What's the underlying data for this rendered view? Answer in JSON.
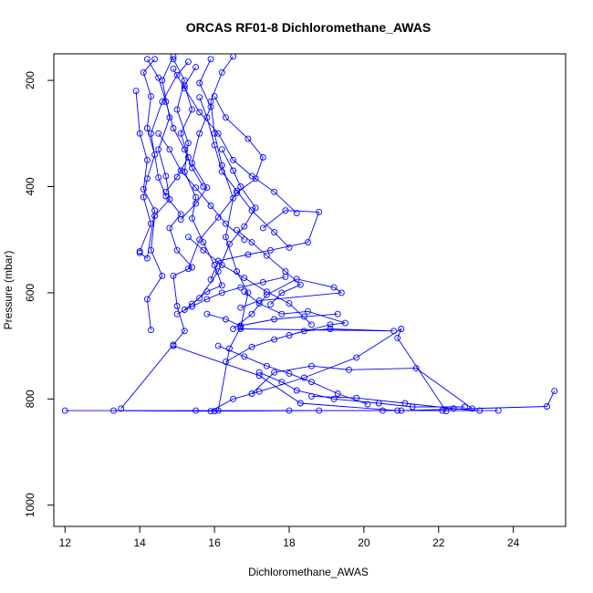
{
  "chart_data": {
    "type": "line",
    "title": "ORCAS RF01-8 Dichloromethane_AWAS",
    "xlabel": "Dichloromethane_AWAS",
    "ylabel": "Pressure (mbar)",
    "xlim": [
      11.7,
      25.4
    ],
    "ylim": [
      1040,
      150
    ],
    "y_reversed": true,
    "x_ticks": [
      12,
      14,
      16,
      18,
      20,
      22,
      24
    ],
    "y_ticks": [
      200,
      400,
      600,
      800,
      1000
    ],
    "grid": false,
    "legend": "none",
    "marker": "open-circle",
    "colors": {
      "series": "#0000ff",
      "axis": "#000000",
      "background": "#ffffff"
    },
    "series": [
      {
        "points": [
          [
            13.5,
            818
          ],
          [
            14.9,
            698
          ],
          [
            15.2,
            672
          ],
          [
            15.0,
            625
          ],
          [
            14.9,
            568
          ],
          [
            15.4,
            552
          ],
          [
            15.0,
            520
          ],
          [
            14.8,
            478
          ],
          [
            15.1,
            452
          ],
          [
            14.7,
            418
          ],
          [
            14.5,
            383
          ],
          [
            14.3,
            300
          ],
          [
            14.6,
            240
          ],
          [
            15.0,
            190
          ],
          [
            15.3,
            165
          ]
        ]
      },
      {
        "points": [
          [
            14.9,
            700
          ],
          [
            17.2,
            756
          ],
          [
            18.3,
            808
          ],
          [
            20.9,
            822
          ],
          [
            22.1,
            822
          ]
        ]
      },
      {
        "points": [
          [
            14.3,
            670
          ],
          [
            14.2,
            612
          ],
          [
            14.6,
            568
          ],
          [
            14.3,
            520
          ],
          [
            14.4,
            455
          ],
          [
            14.8,
            424
          ],
          [
            14.7,
            380
          ],
          [
            14.5,
            330
          ],
          [
            14.8,
            270
          ],
          [
            14.6,
            200
          ],
          [
            14.9,
            155
          ]
        ]
      },
      {
        "points": [
          [
            15.9,
            823
          ],
          [
            16.5,
            800
          ],
          [
            17.2,
            786
          ],
          [
            18.4,
            760
          ],
          [
            19.8,
            722
          ],
          [
            21.0,
            668
          ],
          [
            20.9,
            685
          ],
          [
            22.2,
            823
          ]
        ]
      },
      {
        "points": [
          [
            16.1,
            822
          ],
          [
            16.4,
            705
          ],
          [
            16.7,
            665
          ],
          [
            16.9,
            600
          ],
          [
            16.6,
            560
          ],
          [
            16.3,
            495
          ],
          [
            16.5,
            422
          ],
          [
            16.2,
            360
          ],
          [
            16.0,
            300
          ],
          [
            15.9,
            240
          ],
          [
            16.2,
            185
          ],
          [
            16.5,
            155
          ]
        ]
      },
      {
        "points": [
          [
            15.4,
            621
          ],
          [
            15.8,
            598
          ],
          [
            16.2,
            586
          ],
          [
            16.0,
            548
          ],
          [
            15.7,
            505
          ],
          [
            15.4,
            460
          ],
          [
            15.5,
            420
          ],
          [
            15.2,
            372
          ],
          [
            15.3,
            318
          ],
          [
            15.0,
            255
          ],
          [
            15.2,
            200
          ],
          [
            14.9,
            160
          ]
        ]
      },
      {
        "points": [
          [
            12.0,
            822
          ],
          [
            15.5,
            822
          ],
          [
            18.0,
            822
          ],
          [
            20.5,
            822
          ],
          [
            23.6,
            822
          ]
        ]
      },
      {
        "points": [
          [
            13.3,
            822
          ],
          [
            16.0,
            823
          ],
          [
            18.8,
            822
          ],
          [
            21.0,
            822
          ],
          [
            24.9,
            814
          ],
          [
            25.1,
            785
          ]
        ]
      },
      {
        "points": [
          [
            17.0,
            790
          ],
          [
            17.6,
            750
          ],
          [
            18.6,
            738
          ],
          [
            19.6,
            745
          ],
          [
            21.4,
            742
          ],
          [
            22.9,
            818
          ]
        ]
      },
      {
        "points": [
          [
            16.5,
            668
          ],
          [
            17.0,
            640
          ],
          [
            17.4,
            604
          ],
          [
            18.2,
            574
          ],
          [
            19.2,
            590
          ],
          [
            19.4,
            600
          ],
          [
            17.2,
            615
          ],
          [
            16.7,
            628
          ]
        ]
      },
      {
        "points": [
          [
            15.9,
            575
          ],
          [
            16.1,
            540
          ],
          [
            16.9,
            528
          ],
          [
            17.5,
            520
          ],
          [
            18.5,
            505
          ],
          [
            18.8,
            448
          ],
          [
            17.9,
            445
          ],
          [
            17.3,
            478
          ]
        ]
      },
      {
        "points": [
          [
            15.3,
            555
          ],
          [
            15.6,
            500
          ],
          [
            16.1,
            458
          ],
          [
            16.6,
            412
          ],
          [
            17.1,
            385
          ],
          [
            17.3,
            345
          ],
          [
            16.9,
            310
          ],
          [
            16.3,
            270
          ],
          [
            16.0,
            230
          ]
        ]
      },
      {
        "points": [
          [
            14.0,
            522
          ],
          [
            14.3,
            470
          ],
          [
            14.1,
            420
          ],
          [
            14.2,
            385
          ],
          [
            14.4,
            340
          ],
          [
            14.2,
            290
          ],
          [
            14.3,
            230
          ],
          [
            14.1,
            185
          ],
          [
            14.4,
            160
          ]
        ]
      },
      {
        "points": [
          [
            13.9,
            220
          ],
          [
            14.0,
            300
          ],
          [
            14.2,
            350
          ],
          [
            14.1,
            405
          ],
          [
            14.4,
            445
          ],
          [
            14.2,
            535
          ],
          [
            14.0,
            525
          ]
        ]
      },
      {
        "points": [
          [
            15.2,
            632
          ],
          [
            15.6,
            610
          ],
          [
            16.1,
            560
          ],
          [
            16.4,
            508
          ],
          [
            16.8,
            475
          ],
          [
            17.1,
            440
          ],
          [
            16.7,
            400
          ],
          [
            16.5,
            370
          ],
          [
            16.2,
            330
          ]
        ]
      },
      {
        "points": [
          [
            17.5,
            622
          ],
          [
            17.8,
            600
          ],
          [
            18.3,
            585
          ],
          [
            17.9,
            560
          ],
          [
            17.4,
            530
          ],
          [
            17.0,
            505
          ],
          [
            16.6,
            482
          ]
        ]
      },
      {
        "points": [
          [
            18.0,
            680
          ],
          [
            19.1,
            660
          ],
          [
            19.5,
            657
          ],
          [
            18.5,
            635
          ],
          [
            17.8,
            640
          ],
          [
            17.2,
            620
          ],
          [
            16.8,
            598
          ]
        ]
      },
      {
        "points": [
          [
            16.3,
            730
          ],
          [
            17.0,
            702
          ],
          [
            17.6,
            688
          ],
          [
            18.4,
            672
          ],
          [
            19.1,
            668
          ],
          [
            20.8,
            672
          ],
          [
            16.7,
            668
          ]
        ]
      },
      {
        "points": [
          [
            17.2,
            750
          ],
          [
            17.8,
            768
          ],
          [
            18.2,
            784
          ],
          [
            19.2,
            800
          ],
          [
            20.4,
            808
          ],
          [
            21.3,
            815
          ],
          [
            22.7,
            815
          ]
        ]
      },
      {
        "points": [
          [
            18.6,
            795
          ],
          [
            19.8,
            798
          ],
          [
            21.1,
            808
          ],
          [
            22.4,
            818
          ],
          [
            23.1,
            822
          ]
        ]
      },
      {
        "points": [
          [
            15.8,
            640
          ],
          [
            16.3,
            650
          ],
          [
            16.7,
            662
          ],
          [
            17.6,
            650
          ],
          [
            18.4,
            645
          ],
          [
            19.3,
            640
          ]
        ]
      },
      {
        "points": [
          [
            15.1,
            462
          ],
          [
            15.5,
            432
          ],
          [
            15.8,
            402
          ],
          [
            15.4,
            356
          ],
          [
            15.6,
            300
          ],
          [
            15.9,
            250
          ],
          [
            15.6,
            205
          ],
          [
            15.9,
            160
          ]
        ]
      },
      {
        "points": [
          [
            14.7,
            410
          ],
          [
            15.0,
            382
          ],
          [
            15.3,
            345
          ],
          [
            15.1,
            300
          ],
          [
            15.4,
            255
          ],
          [
            15.2,
            210
          ],
          [
            15.5,
            175
          ]
        ]
      },
      {
        "points": [
          [
            15.6,
            232
          ],
          [
            15.8,
            270
          ],
          [
            16.0,
            322
          ],
          [
            16.2,
            372
          ],
          [
            16.6,
            408
          ],
          [
            17.0,
            445
          ],
          [
            17.6,
            486
          ],
          [
            18.0,
            515
          ]
        ]
      },
      {
        "points": [
          [
            14.9,
            178
          ],
          [
            15.2,
            215
          ],
          [
            15.6,
            260
          ],
          [
            16.1,
            300
          ],
          [
            16.5,
            350
          ],
          [
            17.0,
            380
          ],
          [
            17.6,
            410
          ],
          [
            18.2,
            450
          ]
        ]
      },
      {
        "points": [
          [
            15.3,
            495
          ],
          [
            15.7,
            520
          ],
          [
            16.2,
            548
          ],
          [
            16.8,
            572
          ],
          [
            17.4,
            598
          ],
          [
            18.0,
            620
          ],
          [
            18.6,
            660
          ]
        ]
      },
      {
        "points": [
          [
            16.1,
            700
          ],
          [
            16.8,
            720
          ],
          [
            17.4,
            738
          ],
          [
            18.0,
            752
          ],
          [
            18.6,
            768
          ],
          [
            19.3,
            790
          ],
          [
            20.1,
            810
          ]
        ]
      },
      {
        "points": [
          [
            15.0,
            640
          ],
          [
            15.4,
            626
          ],
          [
            15.8,
            612
          ],
          [
            16.2,
            600
          ],
          [
            16.7,
            590
          ],
          [
            17.3,
            580
          ],
          [
            17.9,
            570
          ]
        ]
      },
      {
        "points": [
          [
            14.5,
            300
          ],
          [
            14.8,
            330
          ],
          [
            15.1,
            370
          ],
          [
            15.5,
            402
          ],
          [
            15.9,
            436
          ],
          [
            16.3,
            470
          ],
          [
            16.8,
            500
          ]
        ]
      },
      {
        "points": [
          [
            14.2,
            160
          ],
          [
            14.5,
            195
          ],
          [
            14.7,
            240
          ],
          [
            14.9,
            290
          ],
          [
            15.2,
            330
          ],
          [
            15.4,
            365
          ],
          [
            15.7,
            400
          ]
        ]
      }
    ]
  }
}
